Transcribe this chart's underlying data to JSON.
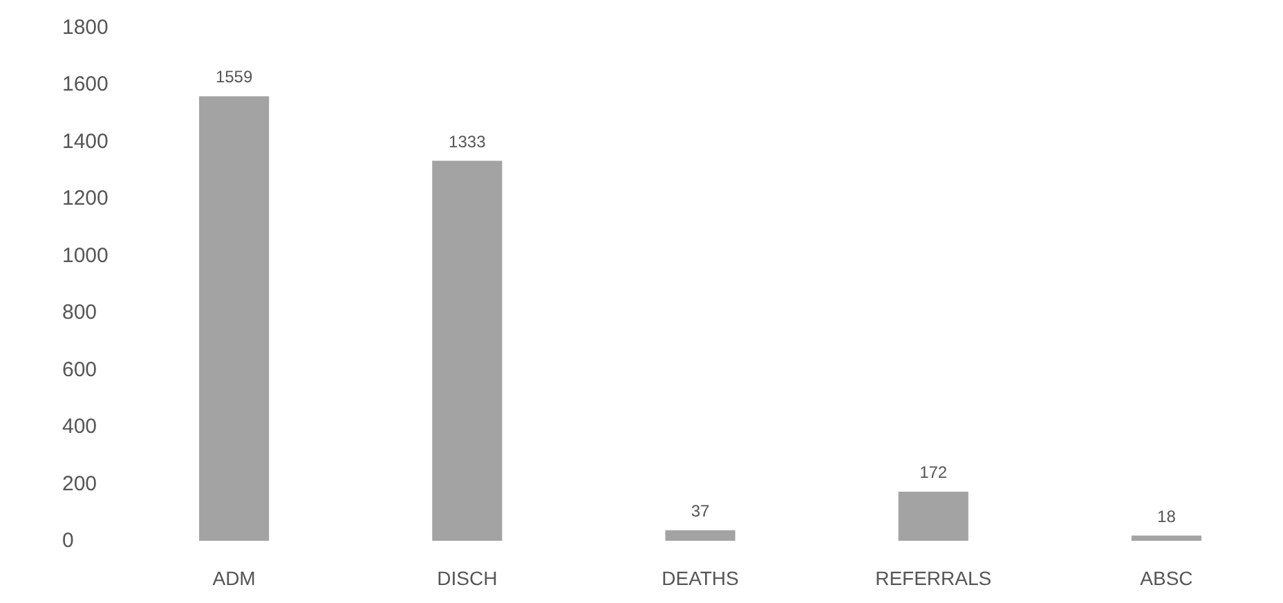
{
  "chart_data": {
    "type": "bar",
    "categories": [
      "ADM",
      "DISCH",
      "DEATHS",
      "REFERRALS",
      "ABSC"
    ],
    "values": [
      1559,
      1333,
      37,
      172,
      18
    ],
    "color": "#a3a3a3",
    "data_labels": true,
    "ylim": [
      0,
      1800
    ],
    "yticks": [
      0,
      200,
      400,
      600,
      800,
      1000,
      1200,
      1400,
      1600,
      1800
    ],
    "grid": false
  }
}
